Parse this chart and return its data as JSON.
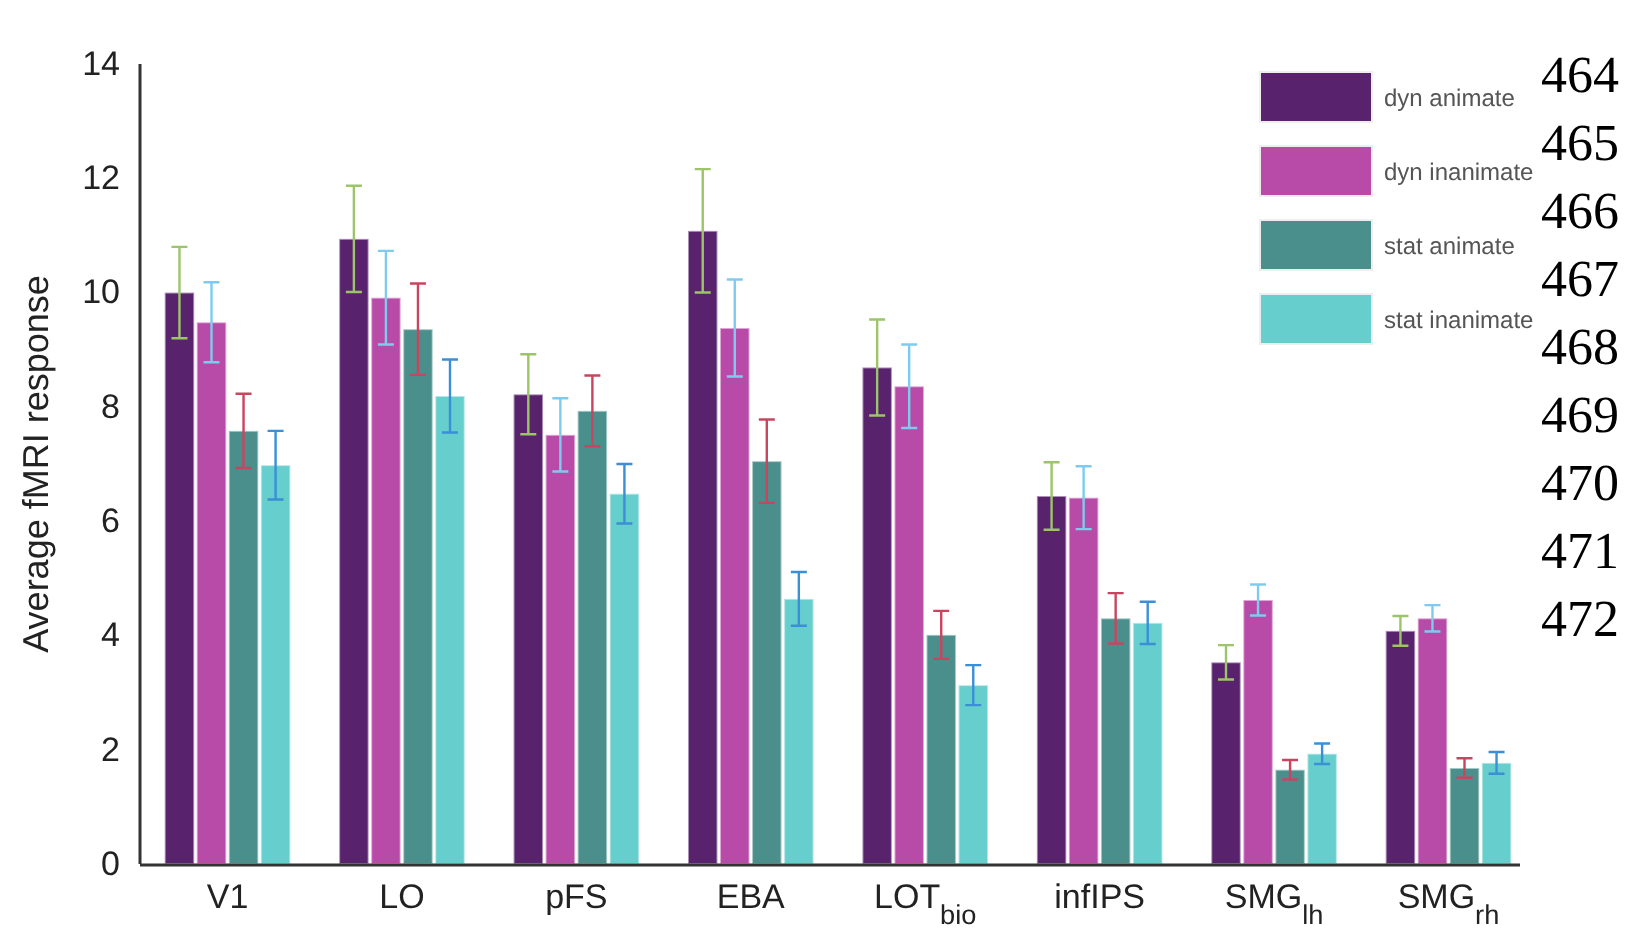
{
  "chart_data": {
    "type": "bar",
    "ylabel": "Average fMRI response",
    "categories": [
      "V1",
      "LO",
      "pFS",
      "EBA",
      "LOT$_{bio}$",
      "infIPS",
      "SMG$_{lh}$",
      "SMG$_{rh}$"
    ],
    "series": [
      {
        "name": "dyn animate",
        "color": "#58226d",
        "values": [
          10.0,
          10.94,
          8.22,
          11.08,
          8.69,
          6.44,
          3.53,
          4.08
        ],
        "errors": [
          0.8,
          0.93,
          0.7,
          1.08,
          0.84,
          0.59,
          0.3,
          0.26
        ]
      },
      {
        "name": "dyn inanimate",
        "color": "#b84aa8",
        "values": [
          9.48,
          9.91,
          7.51,
          9.38,
          8.36,
          6.41,
          4.62,
          4.3
        ],
        "errors": [
          0.7,
          0.82,
          0.64,
          0.85,
          0.73,
          0.55,
          0.27,
          0.23
        ]
      },
      {
        "name": "stat animate",
        "color": "#4b8f8c",
        "values": [
          7.58,
          9.36,
          7.93,
          7.05,
          4.01,
          4.3,
          1.65,
          1.68
        ],
        "errors": [
          0.65,
          0.8,
          0.62,
          0.73,
          0.42,
          0.44,
          0.17,
          0.17
        ]
      },
      {
        "name": "stat inanimate",
        "color": "#66cfcd",
        "values": [
          6.98,
          8.19,
          6.48,
          4.64,
          3.13,
          4.22,
          1.93,
          1.77
        ],
        "errors": [
          0.6,
          0.64,
          0.52,
          0.47,
          0.35,
          0.37,
          0.18,
          0.19
        ]
      }
    ],
    "ylim": [
      0,
      14
    ],
    "yticks": [
      0,
      2,
      4,
      6,
      8,
      10,
      12,
      14
    ],
    "grid": false,
    "legend": "top right",
    "annotations": [
      "464",
      "465",
      "466",
      "467",
      "468",
      "469",
      "470",
      "471",
      "472"
    ]
  }
}
